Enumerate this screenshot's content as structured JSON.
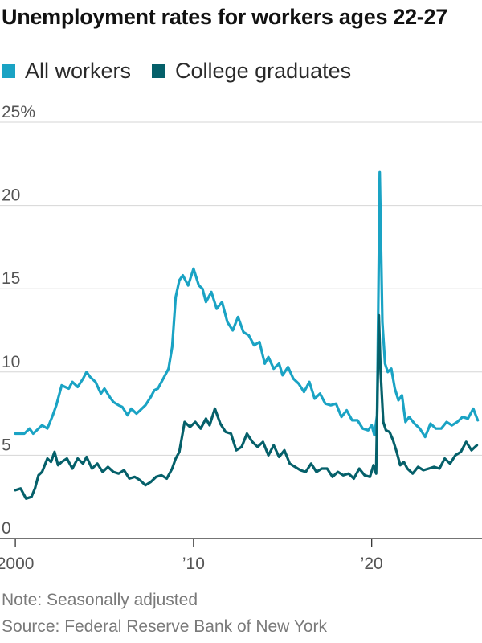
{
  "title": "Unemployment rates for workers ages 22-27",
  "legend": [
    {
      "label": "All workers",
      "color": "#1aa3c4"
    },
    {
      "label": "College graduates",
      "color": "#05606a"
    }
  ],
  "note": "Note: Seasonally adjusted",
  "source": "Source: Federal Reserve Bank of New York",
  "chart_data": {
    "type": "line",
    "title": "Unemployment rates for workers ages 22-27",
    "xlabel": "",
    "ylabel": "",
    "xlim": [
      1999.5,
      2026.1
    ],
    "ylim": [
      0,
      25
    ],
    "y_ticks": [
      0,
      5,
      10,
      15,
      20,
      25
    ],
    "y_tick_labels": [
      "0",
      "5",
      "10",
      "15",
      "20",
      "25%"
    ],
    "x_ticks": [
      2000,
      2010,
      2020
    ],
    "x_tick_labels": [
      "2000",
      "’10",
      "’20"
    ],
    "grid": "horizontal",
    "legend_position": "top-left",
    "series": [
      {
        "name": "All workers",
        "color": "#1aa3c4",
        "x": [
          2000.0,
          2000.5,
          2000.8,
          2001.0,
          2001.5,
          2001.8,
          2002.1,
          2002.3,
          2002.6,
          2003.0,
          2003.2,
          2003.5,
          2003.8,
          2004.0,
          2004.2,
          2004.5,
          2004.8,
          2005.0,
          2005.3,
          2005.5,
          2005.8,
          2006.0,
          2006.3,
          2006.5,
          2006.8,
          2007.0,
          2007.3,
          2007.6,
          2007.8,
          2008.0,
          2008.3,
          2008.6,
          2008.8,
          2009.0,
          2009.2,
          2009.4,
          2009.7,
          2010.0,
          2010.3,
          2010.5,
          2010.7,
          2011.0,
          2011.3,
          2011.6,
          2011.9,
          2012.2,
          2012.5,
          2012.8,
          2013.1,
          2013.4,
          2013.7,
          2014.0,
          2014.2,
          2014.5,
          2014.8,
          2015.0,
          2015.3,
          2015.6,
          2015.9,
          2016.2,
          2016.5,
          2016.8,
          2017.1,
          2017.4,
          2017.7,
          2018.0,
          2018.3,
          2018.6,
          2018.9,
          2019.2,
          2019.5,
          2019.8,
          2020.0,
          2020.15,
          2020.3,
          2020.45,
          2020.6,
          2020.75,
          2020.9,
          2021.1,
          2021.3,
          2021.5,
          2021.7,
          2021.9,
          2022.1,
          2022.4,
          2022.7,
          2023.0,
          2023.3,
          2023.6,
          2023.9,
          2024.2,
          2024.5,
          2024.8,
          2025.1,
          2025.4,
          2025.7,
          2025.95
        ],
        "values": [
          6.3,
          6.3,
          6.6,
          6.3,
          6.8,
          6.6,
          7.4,
          8.0,
          9.2,
          9.0,
          9.4,
          9.1,
          9.6,
          10.0,
          9.7,
          9.4,
          8.7,
          9.0,
          8.5,
          8.2,
          8.0,
          7.9,
          7.4,
          7.8,
          7.5,
          7.7,
          8.0,
          8.5,
          8.9,
          9.0,
          9.6,
          10.2,
          11.5,
          14.5,
          15.5,
          15.8,
          15.2,
          16.2,
          15.2,
          15.0,
          14.2,
          14.8,
          13.8,
          14.2,
          13.0,
          12.5,
          13.3,
          12.4,
          12.2,
          11.6,
          11.8,
          10.5,
          10.9,
          10.2,
          10.5,
          9.8,
          10.3,
          9.6,
          9.3,
          8.8,
          9.4,
          8.4,
          8.7,
          8.1,
          8.0,
          8.1,
          7.3,
          7.7,
          7.1,
          7.1,
          6.6,
          6.5,
          6.8,
          6.2,
          7.4,
          22.0,
          13.0,
          10.5,
          10.0,
          10.2,
          9.0,
          8.3,
          8.6,
          7.0,
          7.3,
          6.9,
          6.6,
          6.1,
          6.9,
          6.6,
          6.6,
          7.0,
          6.8,
          7.0,
          7.3,
          7.2,
          7.8,
          7.1
        ]
      },
      {
        "name": "College graduates",
        "color": "#05606a",
        "x": [
          2000.0,
          2000.3,
          2000.6,
          2000.9,
          2001.1,
          2001.3,
          2001.5,
          2001.8,
          2002.0,
          2002.2,
          2002.4,
          2002.6,
          2002.9,
          2003.2,
          2003.5,
          2003.8,
          2004.0,
          2004.3,
          2004.6,
          2004.9,
          2005.2,
          2005.5,
          2005.8,
          2006.1,
          2006.4,
          2006.7,
          2007.0,
          2007.3,
          2007.6,
          2007.9,
          2008.2,
          2008.5,
          2008.8,
          2009.0,
          2009.2,
          2009.5,
          2009.8,
          2010.1,
          2010.4,
          2010.7,
          2010.9,
          2011.2,
          2011.5,
          2011.8,
          2012.1,
          2012.4,
          2012.7,
          2013.0,
          2013.3,
          2013.6,
          2013.9,
          2014.2,
          2014.5,
          2014.8,
          2015.1,
          2015.4,
          2015.7,
          2016.0,
          2016.3,
          2016.6,
          2016.9,
          2017.2,
          2017.5,
          2017.8,
          2018.1,
          2018.4,
          2018.7,
          2019.0,
          2019.3,
          2019.6,
          2019.9,
          2020.1,
          2020.25,
          2020.4,
          2020.5,
          2020.65,
          2020.8,
          2021.0,
          2021.2,
          2021.4,
          2021.6,
          2021.8,
          2022.0,
          2022.3,
          2022.6,
          2022.9,
          2023.2,
          2023.5,
          2023.8,
          2024.1,
          2024.4,
          2024.7,
          2025.0,
          2025.3,
          2025.6,
          2025.9
        ],
        "values": [
          2.9,
          3.0,
          2.4,
          2.5,
          3.0,
          3.8,
          4.0,
          4.8,
          4.6,
          5.2,
          4.4,
          4.6,
          4.8,
          4.2,
          4.8,
          4.5,
          4.9,
          4.2,
          4.5,
          4.0,
          4.3,
          4.0,
          3.9,
          4.1,
          3.6,
          3.7,
          3.5,
          3.2,
          3.4,
          3.7,
          3.8,
          3.6,
          4.2,
          4.8,
          5.2,
          7.0,
          6.7,
          7.0,
          6.6,
          7.2,
          6.8,
          7.8,
          6.9,
          6.4,
          6.3,
          5.3,
          5.5,
          6.3,
          5.8,
          5.5,
          5.8,
          5.0,
          5.6,
          4.9,
          5.3,
          4.5,
          4.3,
          4.1,
          4.0,
          4.5,
          4.0,
          4.2,
          4.2,
          3.7,
          4.0,
          3.8,
          3.9,
          3.6,
          4.2,
          3.8,
          3.7,
          4.4,
          3.9,
          13.4,
          10.0,
          7.0,
          6.5,
          6.4,
          5.9,
          5.2,
          4.4,
          4.6,
          4.2,
          3.9,
          4.3,
          4.1,
          4.2,
          4.3,
          4.2,
          4.8,
          4.5,
          5.0,
          5.2,
          5.8,
          5.3,
          5.6
        ]
      }
    ]
  }
}
